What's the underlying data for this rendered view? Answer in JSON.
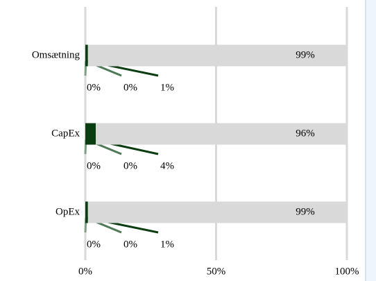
{
  "chart_data": {
    "type": "stacked-bar-horizontal",
    "categories": [
      "Omsætning",
      "CapEx",
      "OpEx"
    ],
    "series": [
      {
        "color": "#7f9f84",
        "values": [
          0,
          0,
          0
        ],
        "value_labels": [
          "0%",
          "0%",
          "0%"
        ]
      },
      {
        "color": "#4f7a58",
        "values": [
          0,
          0,
          0
        ],
        "value_labels": [
          "0%",
          "0%",
          "0%"
        ]
      },
      {
        "color": "#0a3d0f",
        "values": [
          1,
          4,
          1
        ],
        "value_labels": [
          "1%",
          "4%",
          "1%"
        ]
      },
      {
        "color": "#d9d9d9",
        "values": [
          99,
          96,
          99
        ],
        "value_labels": [
          "99%",
          "96%",
          "99%"
        ]
      }
    ],
    "xlim": [
      0,
      100
    ],
    "xticks": [
      {
        "value": 0,
        "label": "0%"
      },
      {
        "value": 50,
        "label": "50%"
      },
      {
        "value": 100,
        "label": "100%"
      }
    ],
    "grid": true
  }
}
